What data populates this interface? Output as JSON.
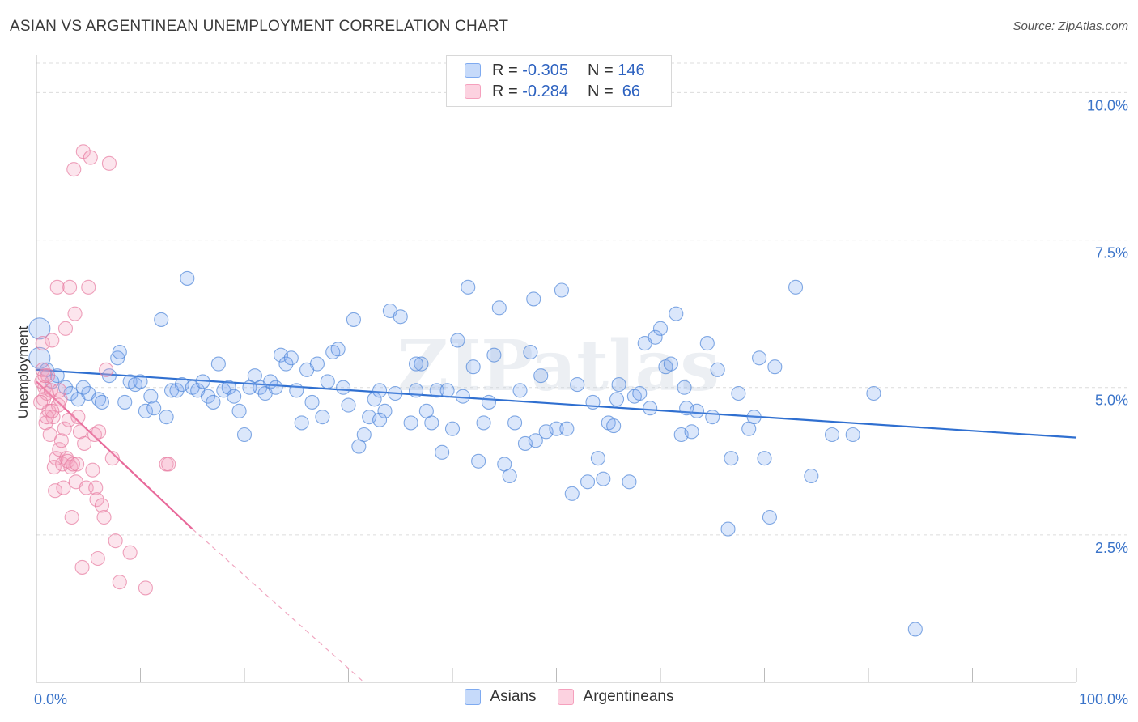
{
  "header": {
    "title": "ASIAN VS ARGENTINEAN UNEMPLOYMENT CORRELATION CHART",
    "source": "Source: ZipAtlas.com"
  },
  "watermark": "ZIPatlas",
  "legend": {
    "rows": [
      {
        "r_label": "R = ",
        "r_value": "-0.305",
        "n_label": "N = ",
        "n_value": "146",
        "color": "#7eaaf0"
      },
      {
        "r_label": "R = ",
        "r_value": "-0.284",
        "n_label": "N = ",
        "n_value": " 66",
        "color": "#f5a0bd"
      }
    ]
  },
  "bottom_legend": [
    {
      "label": "Asians",
      "color": "#7eaaf0"
    },
    {
      "label": "Argentineans",
      "color": "#f5a0bd"
    }
  ],
  "chart_data": {
    "type": "scatter",
    "title": "ASIAN VS ARGENTINEAN UNEMPLOYMENT CORRELATION CHART",
    "ylabel": "Unemployment",
    "xlabel": "",
    "xlim": [
      0,
      100
    ],
    "ylim": [
      0,
      10.5
    ],
    "x_ticks": [
      "0.0%",
      "100.0%"
    ],
    "y_ticks": [
      {
        "value": 2.5,
        "label": "2.5%"
      },
      {
        "value": 5.0,
        "label": "5.0%"
      },
      {
        "value": 7.5,
        "label": "7.5%"
      },
      {
        "value": 10.0,
        "label": "10.0%"
      }
    ],
    "grid": "horizontal-dashed",
    "legend_position": "top-center",
    "series": [
      {
        "name": "Asians",
        "color": "#7eaaf0",
        "edge": "#4f86d8",
        "trend": {
          "x": [
            0,
            100
          ],
          "y": [
            5.3,
            4.15
          ]
        },
        "points": [
          [
            0.3,
            6.0
          ],
          [
            0.3,
            5.5
          ],
          [
            1.0,
            5.3
          ],
          [
            1.5,
            5.1
          ],
          [
            2.0,
            5.2
          ],
          [
            2.8,
            5.0
          ],
          [
            3.3,
            4.9
          ],
          [
            4.0,
            4.8
          ],
          [
            5.0,
            4.9
          ],
          [
            4.5,
            5.0
          ],
          [
            6.0,
            4.8
          ],
          [
            6.3,
            4.75
          ],
          [
            7.0,
            5.2
          ],
          [
            7.8,
            5.5
          ],
          [
            8.0,
            5.6
          ],
          [
            8.5,
            4.75
          ],
          [
            9.0,
            5.1
          ],
          [
            9.5,
            5.05
          ],
          [
            10.0,
            5.1
          ],
          [
            10.5,
            4.6
          ],
          [
            11.0,
            4.85
          ],
          [
            11.3,
            4.65
          ],
          [
            12.0,
            6.15
          ],
          [
            12.5,
            4.5
          ],
          [
            13.0,
            4.95
          ],
          [
            13.5,
            4.95
          ],
          [
            14.0,
            5.05
          ],
          [
            14.5,
            6.85
          ],
          [
            15.0,
            5.0
          ],
          [
            15.5,
            4.95
          ],
          [
            16.0,
            5.1
          ],
          [
            16.5,
            4.85
          ],
          [
            17.0,
            4.75
          ],
          [
            17.5,
            5.4
          ],
          [
            18.0,
            4.95
          ],
          [
            18.5,
            5.0
          ],
          [
            19.0,
            4.85
          ],
          [
            19.5,
            4.6
          ],
          [
            20.0,
            4.2
          ],
          [
            21.0,
            5.2
          ],
          [
            21.5,
            5.0
          ],
          [
            22.0,
            4.9
          ],
          [
            22.5,
            5.1
          ],
          [
            23.0,
            5.0
          ],
          [
            23.5,
            5.55
          ],
          [
            24.0,
            5.4
          ],
          [
            24.5,
            5.5
          ],
          [
            25.0,
            4.95
          ],
          [
            25.5,
            4.4
          ],
          [
            26.0,
            5.3
          ],
          [
            26.5,
            4.75
          ],
          [
            27.0,
            5.4
          ],
          [
            27.5,
            4.5
          ],
          [
            28.0,
            5.1
          ],
          [
            28.5,
            5.6
          ],
          [
            29.0,
            5.65
          ],
          [
            29.5,
            5.0
          ],
          [
            30.0,
            4.7
          ],
          [
            30.5,
            6.15
          ],
          [
            31.0,
            4.0
          ],
          [
            31.5,
            4.2
          ],
          [
            32.0,
            4.5
          ],
          [
            32.5,
            4.8
          ],
          [
            33.0,
            4.95
          ],
          [
            33.5,
            4.6
          ],
          [
            34.0,
            6.3
          ],
          [
            34.5,
            4.9
          ],
          [
            35.0,
            6.2
          ],
          [
            36.0,
            4.4
          ],
          [
            36.5,
            4.95
          ],
          [
            37.0,
            5.4
          ],
          [
            37.5,
            4.6
          ],
          [
            38.0,
            4.4
          ],
          [
            38.5,
            4.95
          ],
          [
            39.0,
            3.9
          ],
          [
            39.5,
            4.95
          ],
          [
            40.0,
            4.3
          ],
          [
            40.5,
            5.8
          ],
          [
            41.0,
            4.85
          ],
          [
            41.5,
            6.7
          ],
          [
            42.0,
            5.35
          ],
          [
            42.5,
            3.75
          ],
          [
            43.0,
            4.4
          ],
          [
            43.5,
            4.75
          ],
          [
            44.0,
            5.55
          ],
          [
            44.5,
            6.35
          ],
          [
            45.0,
            3.7
          ],
          [
            45.5,
            3.5
          ],
          [
            46.0,
            4.4
          ],
          [
            46.5,
            4.95
          ],
          [
            47.0,
            4.05
          ],
          [
            47.5,
            5.6
          ],
          [
            48.0,
            4.1
          ],
          [
            48.5,
            5.2
          ],
          [
            49.0,
            4.25
          ],
          [
            50.0,
            4.3
          ],
          [
            50.5,
            6.65
          ],
          [
            51.0,
            4.3
          ],
          [
            51.5,
            3.2
          ],
          [
            52.0,
            5.05
          ],
          [
            53.0,
            3.4
          ],
          [
            53.5,
            4.75
          ],
          [
            54.0,
            3.8
          ],
          [
            54.5,
            3.45
          ],
          [
            55.0,
            4.4
          ],
          [
            55.5,
            4.35
          ],
          [
            56.0,
            5.05
          ],
          [
            57.0,
            3.4
          ],
          [
            57.5,
            4.85
          ],
          [
            58.0,
            4.9
          ],
          [
            58.5,
            5.75
          ],
          [
            59.0,
            4.65
          ],
          [
            59.5,
            5.85
          ],
          [
            60.0,
            6.0
          ],
          [
            60.5,
            5.35
          ],
          [
            61.0,
            5.4
          ],
          [
            61.5,
            6.25
          ],
          [
            62.0,
            4.2
          ],
          [
            62.5,
            4.65
          ],
          [
            63.0,
            4.25
          ],
          [
            63.5,
            4.6
          ],
          [
            64.5,
            5.75
          ],
          [
            65.0,
            4.5
          ],
          [
            65.5,
            5.3
          ],
          [
            66.5,
            2.6
          ],
          [
            66.8,
            3.8
          ],
          [
            67.5,
            4.9
          ],
          [
            68.5,
            4.3
          ],
          [
            69.0,
            4.5
          ],
          [
            69.5,
            5.5
          ],
          [
            70.0,
            3.8
          ],
          [
            70.5,
            2.8
          ],
          [
            71.0,
            5.35
          ],
          [
            73.0,
            6.7
          ],
          [
            74.5,
            3.5
          ],
          [
            76.5,
            4.2
          ],
          [
            78.5,
            4.2
          ],
          [
            80.5,
            4.9
          ],
          [
            84.5,
            0.9
          ],
          [
            36.5,
            5.4
          ],
          [
            20.5,
            5.0
          ],
          [
            33.0,
            4.45
          ],
          [
            47.8,
            6.5
          ],
          [
            55.8,
            4.8
          ],
          [
            62.3,
            5.0
          ]
        ]
      },
      {
        "name": "Argentineans",
        "color": "#f5a0bd",
        "edge": "#e77aa0",
        "trend": {
          "x": [
            0,
            15
          ],
          "y": [
            5.1,
            2.6
          ]
        },
        "trend_dashed": {
          "x": [
            15,
            31.5
          ],
          "y": [
            2.6,
            0.0
          ]
        },
        "points": [
          [
            0.5,
            5.1
          ],
          [
            0.6,
            5.3
          ],
          [
            0.7,
            4.8
          ],
          [
            0.8,
            5.0
          ],
          [
            0.9,
            4.4
          ],
          [
            1.0,
            4.9
          ],
          [
            1.1,
            5.2
          ],
          [
            1.2,
            4.6
          ],
          [
            1.3,
            4.2
          ],
          [
            1.4,
            4.95
          ],
          [
            1.5,
            5.8
          ],
          [
            1.6,
            4.5
          ],
          [
            1.7,
            3.65
          ],
          [
            1.8,
            3.25
          ],
          [
            1.9,
            3.8
          ],
          [
            2.0,
            6.7
          ],
          [
            2.1,
            4.7
          ],
          [
            2.2,
            3.95
          ],
          [
            2.3,
            4.8
          ],
          [
            2.4,
            4.1
          ],
          [
            2.5,
            3.7
          ],
          [
            2.6,
            3.3
          ],
          [
            2.7,
            4.3
          ],
          [
            2.8,
            6.0
          ],
          [
            2.9,
            3.8
          ],
          [
            3.0,
            3.75
          ],
          [
            3.1,
            4.45
          ],
          [
            3.2,
            6.7
          ],
          [
            3.3,
            3.65
          ],
          [
            3.4,
            2.8
          ],
          [
            3.5,
            3.7
          ],
          [
            3.6,
            8.7
          ],
          [
            3.7,
            6.25
          ],
          [
            3.8,
            3.4
          ],
          [
            3.9,
            3.7
          ],
          [
            4.0,
            4.5
          ],
          [
            4.2,
            4.25
          ],
          [
            4.4,
            1.95
          ],
          [
            4.5,
            9.0
          ],
          [
            4.6,
            4.05
          ],
          [
            4.8,
            3.3
          ],
          [
            5.0,
            6.7
          ],
          [
            5.2,
            8.9
          ],
          [
            5.4,
            3.6
          ],
          [
            5.6,
            4.2
          ],
          [
            5.7,
            3.3
          ],
          [
            5.8,
            3.1
          ],
          [
            5.9,
            2.1
          ],
          [
            6.0,
            4.25
          ],
          [
            6.3,
            3.0
          ],
          [
            6.5,
            2.8
          ],
          [
            6.7,
            5.3
          ],
          [
            7.0,
            8.8
          ],
          [
            7.3,
            3.8
          ],
          [
            7.6,
            2.4
          ],
          [
            8.0,
            1.7
          ],
          [
            9.0,
            2.2
          ],
          [
            10.5,
            1.6
          ],
          [
            12.5,
            3.7
          ],
          [
            12.7,
            3.7
          ],
          [
            0.4,
            4.75
          ],
          [
            0.6,
            5.75
          ],
          [
            1.0,
            4.5
          ],
          [
            2.2,
            4.95
          ],
          [
            1.5,
            4.6
          ],
          [
            0.8,
            5.2
          ]
        ]
      }
    ]
  }
}
